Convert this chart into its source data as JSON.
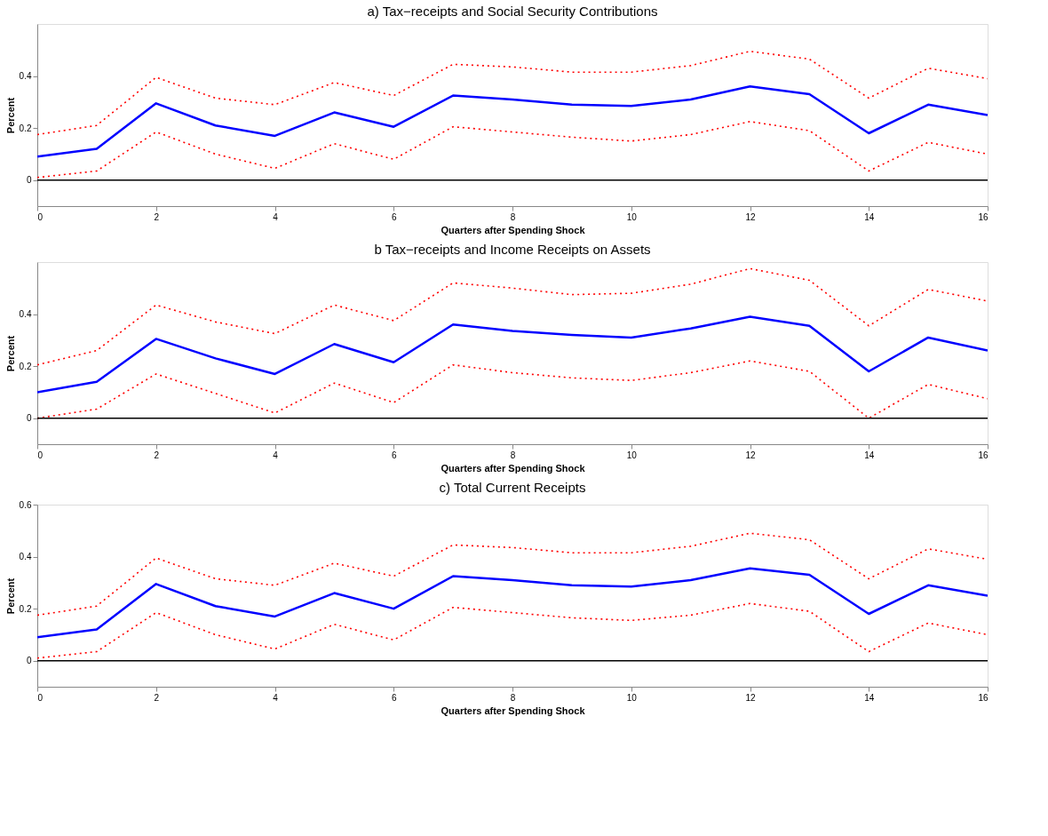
{
  "chart_data": [
    {
      "type": "line",
      "title": "a) Tax−receipts and Social Security Contributions",
      "xlabel": "Quarters after Spending Shock",
      "ylabel": "Percent",
      "x": [
        0,
        1,
        2,
        3,
        4,
        5,
        6,
        7,
        8,
        9,
        10,
        11,
        12,
        13,
        14,
        15,
        16
      ],
      "xlim": [
        0,
        16
      ],
      "xticks": [
        0,
        2,
        4,
        6,
        8,
        10,
        12,
        14,
        16
      ],
      "ylim": [
        -0.1,
        0.6
      ],
      "yticks": [
        0,
        0.2,
        0.4
      ],
      "grid": false,
      "series": [
        {
          "color": "#ff0000",
          "line_style": "dotted",
          "values": [
            0.175,
            0.21,
            0.395,
            0.315,
            0.29,
            0.375,
            0.325,
            0.445,
            0.435,
            0.415,
            0.415,
            0.44,
            0.495,
            0.465,
            0.315,
            0.43,
            0.39
          ]
        },
        {
          "color": "#ff0000",
          "line_style": "dotted",
          "values": [
            0.01,
            0.035,
            0.185,
            0.1,
            0.045,
            0.14,
            0.08,
            0.205,
            0.185,
            0.165,
            0.15,
            0.175,
            0.225,
            0.19,
            0.035,
            0.145,
            0.1
          ]
        },
        {
          "color": "#0000ff",
          "line_style": "solid",
          "values": [
            0.09,
            0.12,
            0.295,
            0.21,
            0.17,
            0.26,
            0.205,
            0.325,
            0.31,
            0.29,
            0.285,
            0.31,
            0.36,
            0.33,
            0.18,
            0.29,
            0.25
          ]
        }
      ],
      "ref_lines": [
        {
          "axis": "y",
          "value": 0,
          "color": "#000000"
        }
      ]
    },
    {
      "type": "line",
      "title": "b Tax−receipts and Income Receipts on Assets",
      "xlabel": "Quarters after Spending Shock",
      "ylabel": "Percent",
      "x": [
        0,
        1,
        2,
        3,
        4,
        5,
        6,
        7,
        8,
        9,
        10,
        11,
        12,
        13,
        14,
        15,
        16
      ],
      "xlim": [
        0,
        16
      ],
      "xticks": [
        0,
        2,
        4,
        6,
        8,
        10,
        12,
        14,
        16
      ],
      "ylim": [
        -0.1,
        0.6
      ],
      "yticks": [
        0,
        0.2,
        0.4
      ],
      "grid": false,
      "series": [
        {
          "color": "#ff0000",
          "line_style": "dotted",
          "values": [
            0.205,
            0.26,
            0.435,
            0.37,
            0.325,
            0.435,
            0.375,
            0.52,
            0.5,
            0.475,
            0.48,
            0.515,
            0.575,
            0.53,
            0.355,
            0.495,
            0.45
          ]
        },
        {
          "color": "#ff0000",
          "line_style": "dotted",
          "values": [
            0.0,
            0.035,
            0.17,
            0.095,
            0.02,
            0.135,
            0.06,
            0.205,
            0.175,
            0.155,
            0.145,
            0.175,
            0.22,
            0.18,
            0.0,
            0.13,
            0.075
          ]
        },
        {
          "color": "#0000ff",
          "line_style": "solid",
          "values": [
            0.1,
            0.14,
            0.305,
            0.23,
            0.17,
            0.285,
            0.215,
            0.36,
            0.335,
            0.32,
            0.31,
            0.345,
            0.39,
            0.355,
            0.18,
            0.31,
            0.26
          ]
        }
      ],
      "ref_lines": [
        {
          "axis": "y",
          "value": 0,
          "color": "#000000"
        }
      ]
    },
    {
      "type": "line",
      "title": "c) Total Current Receipts",
      "xlabel": "Quarters after Spending Shock",
      "ylabel": "Percent",
      "x": [
        0,
        1,
        2,
        3,
        4,
        5,
        6,
        7,
        8,
        9,
        10,
        11,
        12,
        13,
        14,
        15,
        16
      ],
      "xlim": [
        0,
        16
      ],
      "xticks": [
        0,
        2,
        4,
        6,
        8,
        10,
        12,
        14,
        16
      ],
      "ylim": [
        -0.1,
        0.6
      ],
      "yticks": [
        0,
        0.2,
        0.4,
        0.6
      ],
      "grid": false,
      "series": [
        {
          "color": "#ff0000",
          "line_style": "dotted",
          "values": [
            0.175,
            0.21,
            0.395,
            0.315,
            0.29,
            0.375,
            0.325,
            0.445,
            0.435,
            0.415,
            0.415,
            0.44,
            0.49,
            0.465,
            0.315,
            0.43,
            0.39
          ]
        },
        {
          "color": "#ff0000",
          "line_style": "dotted",
          "values": [
            0.01,
            0.035,
            0.185,
            0.1,
            0.045,
            0.14,
            0.08,
            0.205,
            0.185,
            0.165,
            0.155,
            0.175,
            0.22,
            0.19,
            0.035,
            0.145,
            0.1
          ]
        },
        {
          "color": "#0000ff",
          "line_style": "solid",
          "values": [
            0.09,
            0.12,
            0.295,
            0.21,
            0.17,
            0.26,
            0.2,
            0.325,
            0.31,
            0.29,
            0.285,
            0.31,
            0.355,
            0.33,
            0.18,
            0.29,
            0.25
          ]
        }
      ],
      "ref_lines": [
        {
          "axis": "y",
          "value": 0,
          "color": "#000000"
        }
      ]
    }
  ]
}
